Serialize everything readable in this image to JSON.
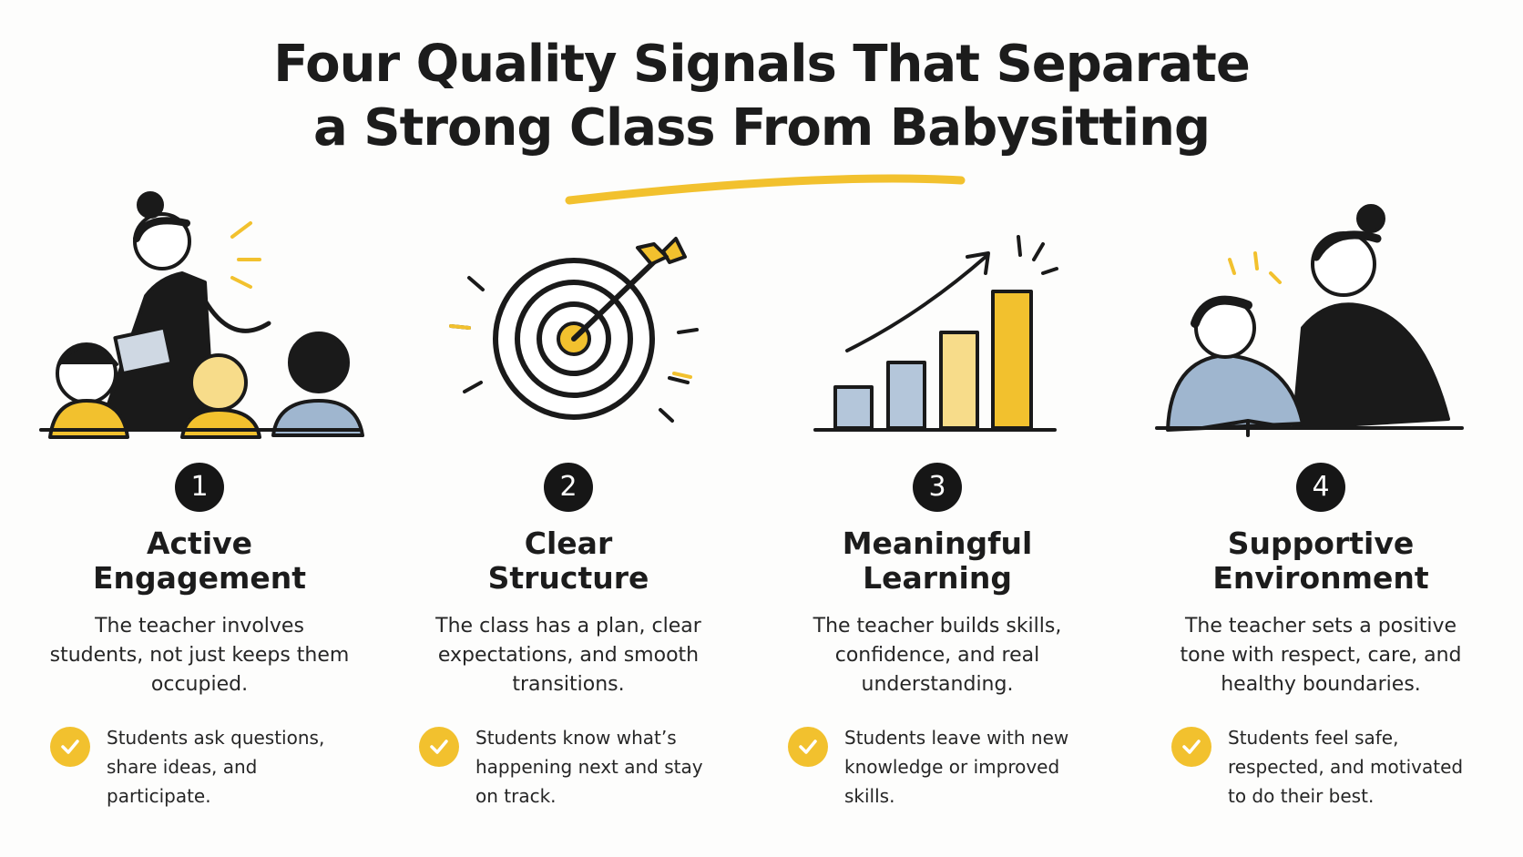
{
  "header": {
    "title_lines": [
      "Four Quality Signals That Separate",
      "a Strong Class From Babysitting"
    ]
  },
  "cards": [
    {
      "number": "1",
      "heading_lines": [
        "Active",
        "Engagement"
      ],
      "description": "The teacher involves students, not just keeps them occupied.",
      "check": "Students ask questions, share ideas, and participate."
    },
    {
      "number": "2",
      "heading_lines": [
        "Clear",
        "Structure"
      ],
      "description": "The class has a plan, clear expectations, and smooth transitions.",
      "check": "Students know what’s happening next and stay on track."
    },
    {
      "number": "3",
      "heading_lines": [
        "Meaningful",
        "Learning"
      ],
      "description": "The teacher builds skills, confidence, and real understanding.",
      "check": "Students leave with new knowledge or improved skills."
    },
    {
      "number": "4",
      "heading_lines": [
        "Supportive",
        "Environment"
      ],
      "description": "The teacher sets a positive tone with respect, care, and healthy boundaries.",
      "check": "Students feel safe, respected, and motivated to do their best."
    }
  ]
}
